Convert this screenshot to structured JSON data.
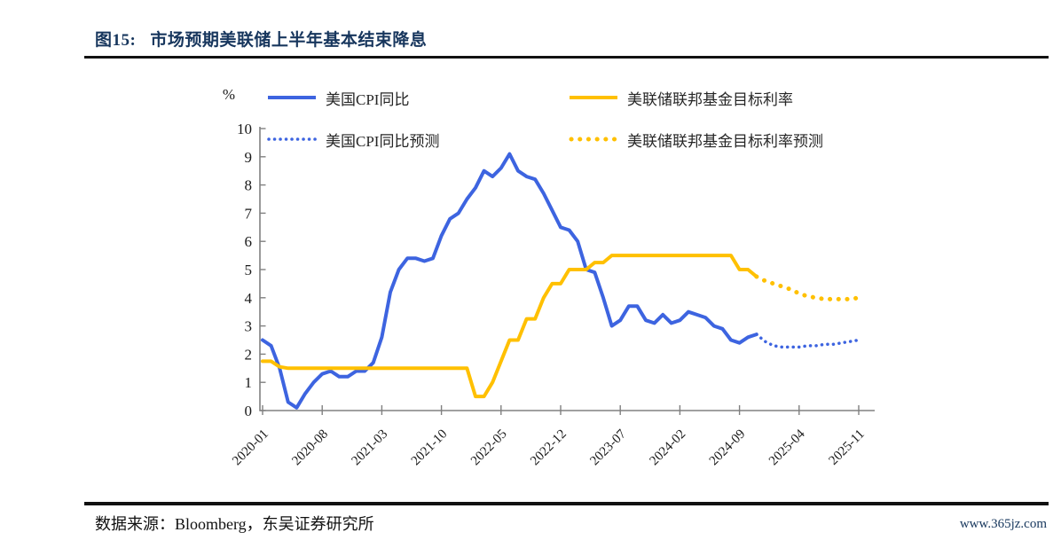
{
  "header": {
    "figure_label": "图15:",
    "title": "市场预期美联储上半年基本结束降息"
  },
  "colors": {
    "blue": "#3D64E0",
    "yellow": "#FFC000",
    "axis": "#808080",
    "title_navy": "#17365D",
    "site_navy": "#16365C"
  },
  "footer": {
    "source": "数据来源：Bloomberg，东吴证券研究所",
    "site": "www.365jz.com"
  },
  "chart_data": {
    "type": "line",
    "title": "市场预期美联储上半年基本结束降息",
    "y_unit_label": "%",
    "ylim": [
      0,
      10
    ],
    "y_ticks": [
      0,
      1,
      2,
      3,
      4,
      5,
      6,
      7,
      8,
      9,
      10
    ],
    "grid": false,
    "legend_position": "top",
    "x_unit": "month",
    "x_start": "2020-01",
    "x_end": "2025-11",
    "x_tick_months": [
      0,
      7,
      14,
      21,
      28,
      35,
      42,
      49,
      56,
      63,
      70
    ],
    "x_tick_labels": [
      "2020-01",
      "2020-08",
      "2021-03",
      "2021-10",
      "2022-05",
      "2022-12",
      "2023-07",
      "2024-02",
      "2024-09",
      "2025-04",
      "2025-11"
    ],
    "series": [
      {
        "name": "美国CPI同比",
        "style": "solid",
        "color_key": "blue",
        "start_index": 0,
        "values": [
          2.5,
          2.3,
          1.5,
          0.3,
          0.1,
          0.6,
          1.0,
          1.3,
          1.4,
          1.2,
          1.2,
          1.4,
          1.4,
          1.7,
          2.6,
          4.2,
          5.0,
          5.4,
          5.4,
          5.3,
          5.4,
          6.2,
          6.8,
          7.0,
          7.5,
          7.9,
          8.5,
          8.3,
          8.6,
          9.1,
          8.5,
          8.3,
          8.2,
          7.7,
          7.1,
          6.5,
          6.4,
          6.0,
          5.0,
          4.9,
          4.0,
          3.0,
          3.2,
          3.7,
          3.7,
          3.2,
          3.1,
          3.4,
          3.1,
          3.2,
          3.5,
          3.4,
          3.3,
          3.0,
          2.9,
          2.5,
          2.4,
          2.6,
          2.7
        ]
      },
      {
        "name": "美联储联邦基金目标利率",
        "style": "solid",
        "color_key": "yellow",
        "start_index": 0,
        "values": [
          1.75,
          1.75,
          1.55,
          1.5,
          1.5,
          1.5,
          1.5,
          1.5,
          1.5,
          1.5,
          1.5,
          1.5,
          1.5,
          1.5,
          1.5,
          1.5,
          1.5,
          1.5,
          1.5,
          1.5,
          1.5,
          1.5,
          1.5,
          1.5,
          1.5,
          0.5,
          0.5,
          1.0,
          1.75,
          2.5,
          2.5,
          3.25,
          3.25,
          4.0,
          4.5,
          4.5,
          5.0,
          5.0,
          5.0,
          5.25,
          5.25,
          5.5,
          5.5,
          5.5,
          5.5,
          5.5,
          5.5,
          5.5,
          5.5,
          5.5,
          5.5,
          5.5,
          5.5,
          5.5,
          5.5,
          5.5,
          5.0,
          5.0,
          4.75
        ]
      },
      {
        "name": "美国CPI同比预测",
        "style": "dotted",
        "color_key": "blue",
        "start_index": 58,
        "values": [
          2.7,
          2.45,
          2.3,
          2.25,
          2.25,
          2.25,
          2.3,
          2.3,
          2.35,
          2.35,
          2.4,
          2.45,
          2.5
        ]
      },
      {
        "name": "美联储联邦基金目标利率预测",
        "style": "dotted",
        "color_key": "yellow",
        "start_index": 58,
        "values": [
          4.75,
          4.6,
          4.5,
          4.4,
          4.3,
          4.15,
          4.05,
          4.0,
          3.95,
          3.95,
          3.95,
          3.95,
          4.0
        ]
      }
    ]
  }
}
